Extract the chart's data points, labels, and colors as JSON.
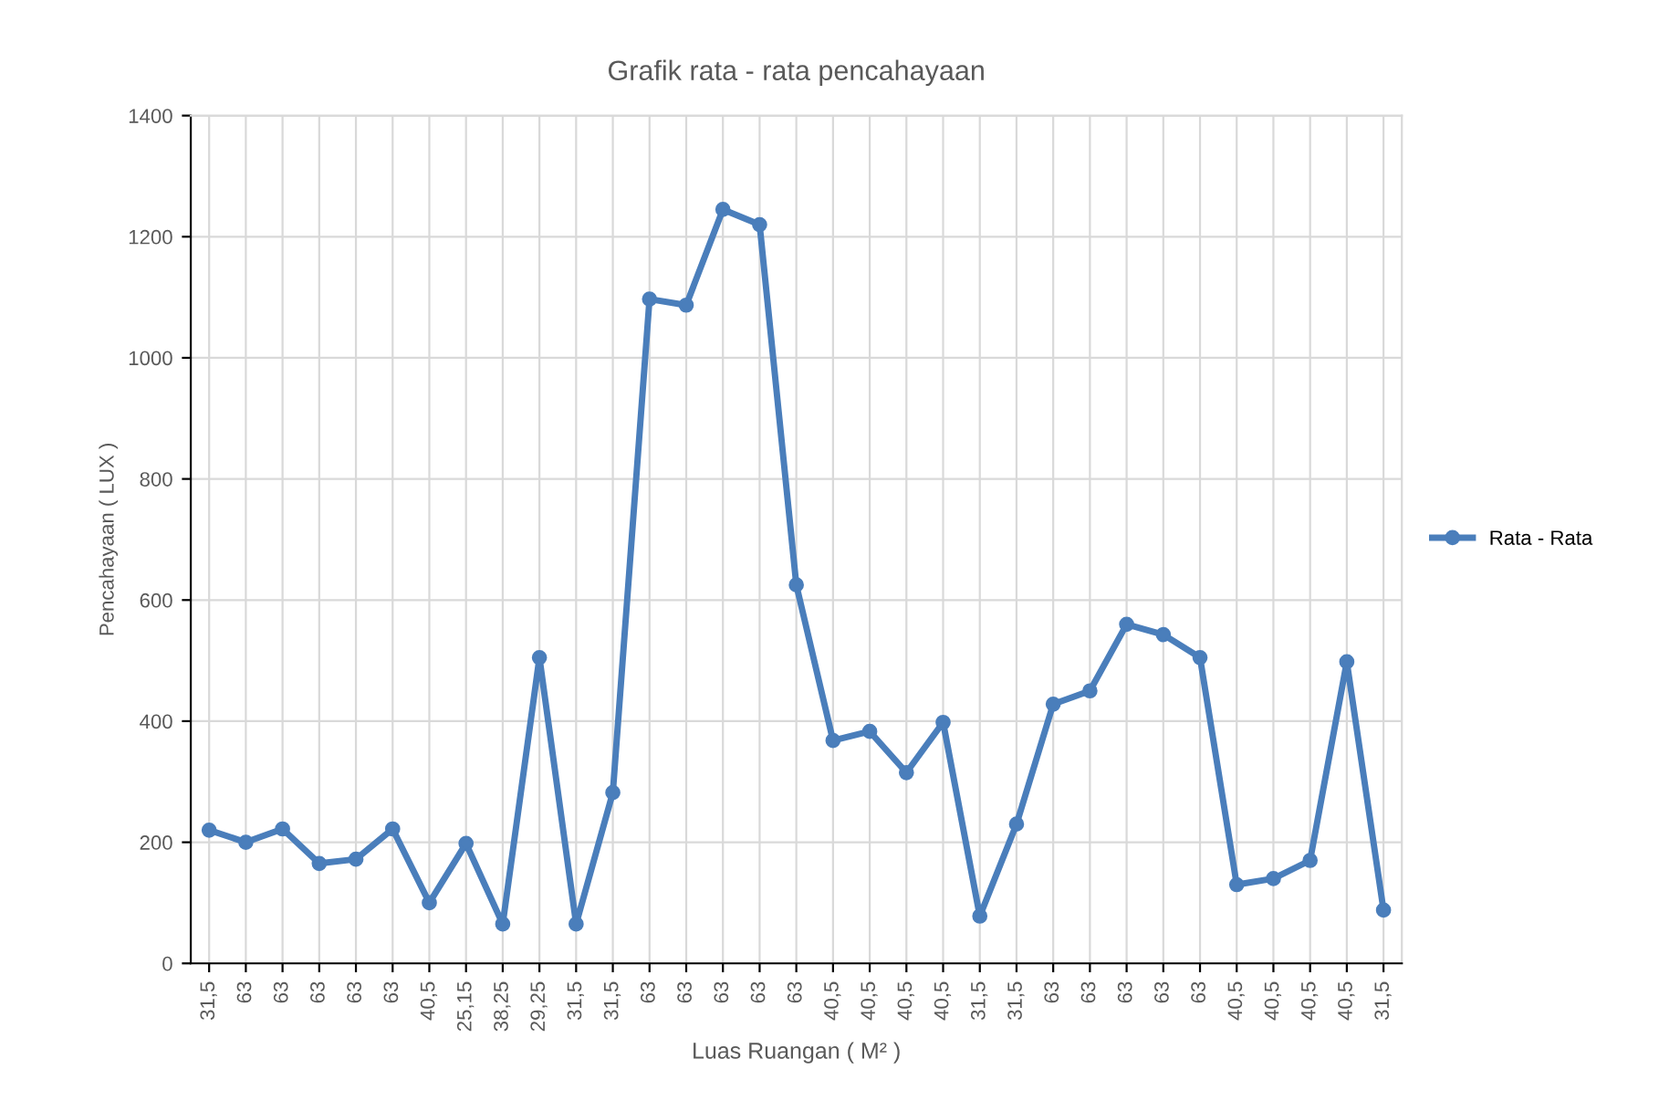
{
  "chart_data": {
    "type": "line",
    "title": "Grafik rata - rata pencahayaan",
    "xlabel": "Luas Ruangan ( M² )",
    "ylabel": "Pencahayaan ( LUX )",
    "categories": [
      "31,5",
      "63",
      "63",
      "63",
      "63",
      "63",
      "40,5",
      "25,15",
      "38,25",
      "29,25",
      "31,5",
      "31,5",
      "63",
      "63",
      "63",
      "63",
      "63",
      "40,5",
      "40,5",
      "40,5",
      "40,5",
      "31,5",
      "31,5",
      "63",
      "63",
      "63",
      "63",
      "63",
      "40,5",
      "40,5",
      "40,5",
      "40,5",
      "31,5"
    ],
    "series": [
      {
        "name": "Rata - Rata",
        "color": "#4a7ebb",
        "values": [
          220,
          200,
          222,
          165,
          172,
          222,
          100,
          198,
          65,
          505,
          65,
          282,
          1097,
          1087,
          1245,
          1220,
          625,
          368,
          383,
          315,
          398,
          78,
          230,
          428,
          450,
          560,
          543,
          505,
          130,
          140,
          170,
          498,
          88
        ]
      }
    ],
    "ylim": [
      0,
      1400
    ],
    "yticks": [
      0,
      200,
      400,
      600,
      800,
      1000,
      1200,
      1400
    ],
    "grid": true,
    "legend": "right",
    "marker": "circle",
    "line_style": "solid"
  }
}
